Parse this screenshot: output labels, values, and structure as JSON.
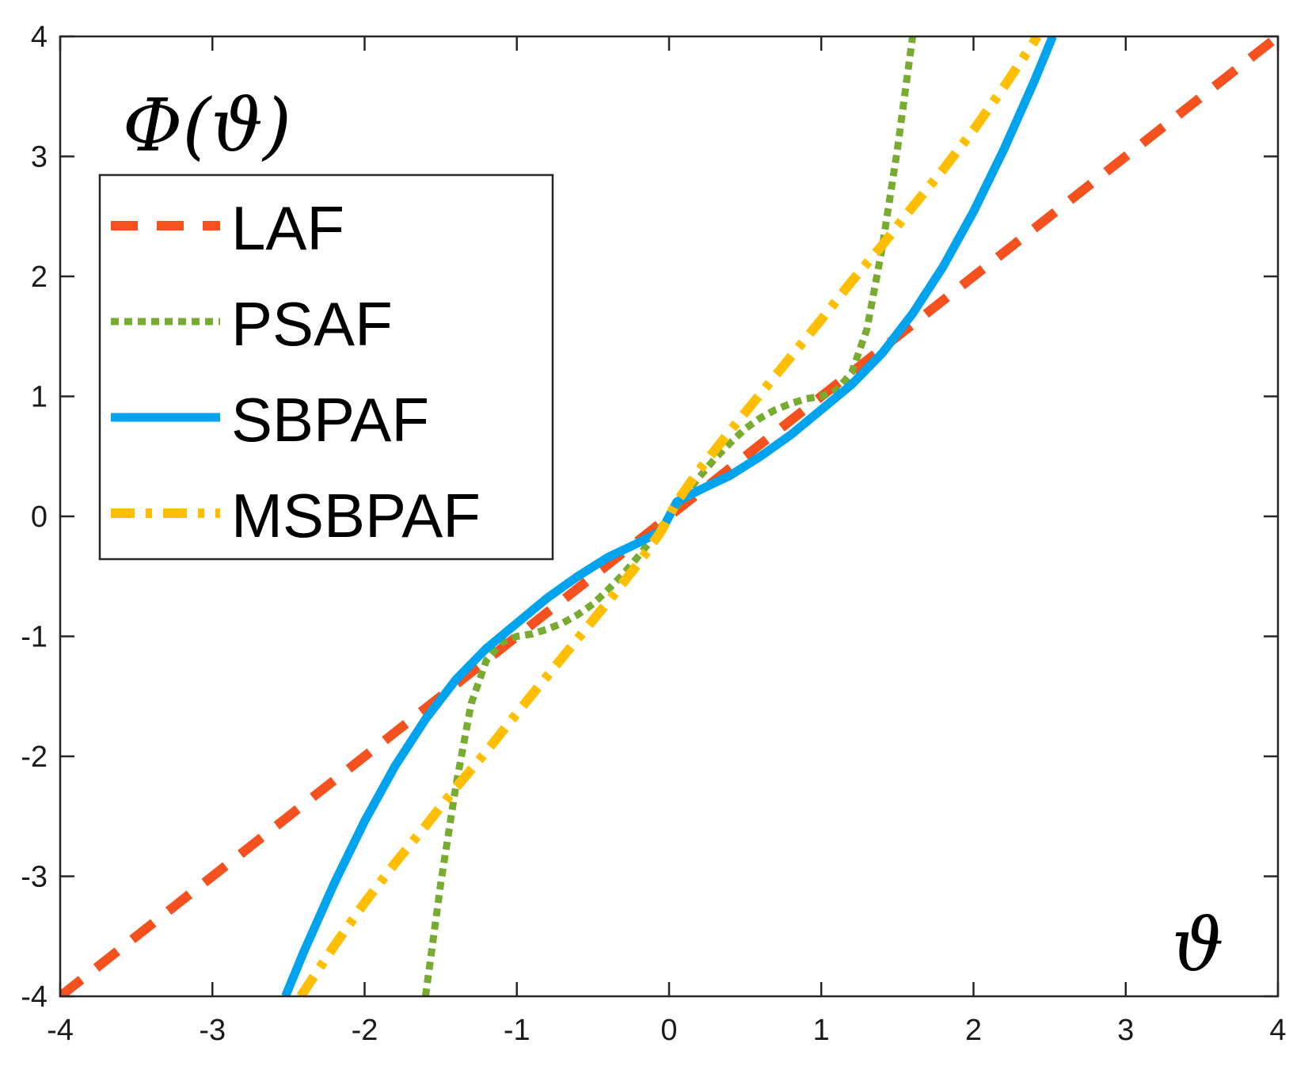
{
  "chart_data": {
    "type": "line",
    "ylabel": "Φ(ϑ)",
    "xlabel": "ϑ",
    "xlim": [
      -4,
      4
    ],
    "ylim": [
      -4,
      4
    ],
    "xticks": [
      "-4",
      "-3",
      "-2",
      "-1",
      "0",
      "1",
      "2",
      "3",
      "4"
    ],
    "yticks": [
      "-4",
      "-3",
      "-2",
      "-1",
      "0",
      "1",
      "2",
      "3",
      "4"
    ],
    "grid": false,
    "legend_position": "top-left",
    "series": [
      {
        "name": "LAF",
        "color": "#f4511e",
        "style": "dashed",
        "points": [
          [
            -4,
            -4
          ],
          [
            -2,
            -2
          ],
          [
            0,
            0
          ],
          [
            2,
            2
          ],
          [
            4,
            4
          ]
        ]
      },
      {
        "name": "PSAF",
        "color": "#77ac30",
        "style": "dotted",
        "points": [
          [
            -1.6,
            -4.0
          ],
          [
            -1.5,
            -3.06
          ],
          [
            -1.4,
            -2.24
          ],
          [
            -1.3,
            -1.56
          ],
          [
            -1.2,
            -1.2
          ],
          [
            -1.1,
            -1.05
          ],
          [
            -1.0,
            -1.0
          ],
          [
            -0.9,
            -0.98
          ],
          [
            -0.8,
            -0.94
          ],
          [
            -0.7,
            -0.89
          ],
          [
            -0.6,
            -0.82
          ],
          [
            -0.5,
            -0.73
          ],
          [
            -0.4,
            -0.61
          ],
          [
            -0.3,
            -0.48
          ],
          [
            -0.2,
            -0.33
          ],
          [
            -0.1,
            -0.17
          ],
          [
            0.0,
            0.0
          ],
          [
            0.1,
            0.17
          ],
          [
            0.2,
            0.33
          ],
          [
            0.3,
            0.48
          ],
          [
            0.4,
            0.61
          ],
          [
            0.5,
            0.73
          ],
          [
            0.6,
            0.82
          ],
          [
            0.7,
            0.89
          ],
          [
            0.8,
            0.94
          ],
          [
            0.9,
            0.98
          ],
          [
            1.0,
            1.0
          ],
          [
            1.1,
            1.05
          ],
          [
            1.2,
            1.2
          ],
          [
            1.3,
            1.56
          ],
          [
            1.4,
            2.24
          ],
          [
            1.5,
            3.06
          ],
          [
            1.6,
            4.0
          ]
        ]
      },
      {
        "name": "SBPAF",
        "color": "#00a3ed",
        "style": "solid",
        "points": [
          [
            -2.52,
            -4.0
          ],
          [
            -2.4,
            -3.63
          ],
          [
            -2.2,
            -3.06
          ],
          [
            -2.0,
            -2.54
          ],
          [
            -1.8,
            -2.08
          ],
          [
            -1.6,
            -1.69
          ],
          [
            -1.4,
            -1.36
          ],
          [
            -1.2,
            -1.1
          ],
          [
            -1.0,
            -0.89
          ],
          [
            -0.8,
            -0.68
          ],
          [
            -0.6,
            -0.5
          ],
          [
            -0.4,
            -0.34
          ],
          [
            -0.2,
            -0.22
          ],
          [
            -0.05,
            -0.12
          ],
          [
            0.0,
            0.0
          ],
          [
            0.05,
            0.12
          ],
          [
            0.2,
            0.22
          ],
          [
            0.4,
            0.34
          ],
          [
            0.6,
            0.5
          ],
          [
            0.8,
            0.68
          ],
          [
            1.0,
            0.89
          ],
          [
            1.2,
            1.1
          ],
          [
            1.4,
            1.36
          ],
          [
            1.6,
            1.69
          ],
          [
            1.8,
            2.08
          ],
          [
            2.0,
            2.54
          ],
          [
            2.2,
            3.06
          ],
          [
            2.4,
            3.63
          ],
          [
            2.52,
            4.0
          ]
        ]
      },
      {
        "name": "MSBPAF",
        "color": "#ffbf00",
        "style": "dash-dot",
        "points": [
          [
            -2.42,
            -4.0
          ],
          [
            -2.2,
            -3.58
          ],
          [
            -2.0,
            -3.22
          ],
          [
            -1.8,
            -2.89
          ],
          [
            -1.6,
            -2.58
          ],
          [
            -1.4,
            -2.26
          ],
          [
            -1.2,
            -1.96
          ],
          [
            -1.0,
            -1.64
          ],
          [
            -0.8,
            -1.33
          ],
          [
            -0.6,
            -1.02
          ],
          [
            -0.4,
            -0.71
          ],
          [
            -0.2,
            -0.39
          ],
          [
            -0.05,
            -0.12
          ],
          [
            0.0,
            0.0
          ],
          [
            0.05,
            0.12
          ],
          [
            0.2,
            0.39
          ],
          [
            0.4,
            0.71
          ],
          [
            0.6,
            1.02
          ],
          [
            0.8,
            1.33
          ],
          [
            1.0,
            1.64
          ],
          [
            1.2,
            1.96
          ],
          [
            1.4,
            2.26
          ],
          [
            1.6,
            2.58
          ],
          [
            1.8,
            2.89
          ],
          [
            2.0,
            3.22
          ],
          [
            2.2,
            3.58
          ],
          [
            2.42,
            4.0
          ]
        ]
      }
    ]
  }
}
